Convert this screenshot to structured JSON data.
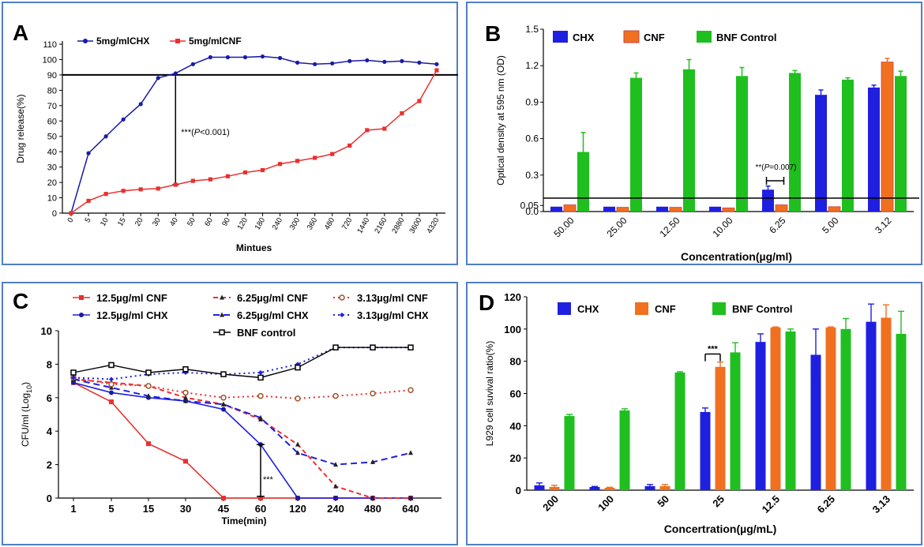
{
  "colors": {
    "frame": "#4f7fc4",
    "chx": "#1a1aa6",
    "cnf": "#e8312f",
    "cnf_bar": "#f07020",
    "bnf": "#1fbf1f",
    "black": "#000000",
    "chx_bar": "#1f1fe0"
  },
  "chart_data": [
    {
      "panel": "A",
      "type": "line",
      "title": "",
      "panel_label": "A",
      "xlabel": "Mintues",
      "ylabel": "Drug  release(%)",
      "ylim": [
        0,
        110
      ],
      "yticks": [
        "0",
        "10",
        "20",
        "30",
        "40",
        "50",
        "60",
        "70",
        "80",
        "90",
        "100",
        "110"
      ],
      "categories": [
        "0",
        "5",
        "10",
        "15",
        "20",
        "30",
        "40",
        "50",
        "60",
        "90",
        "120",
        "180",
        "240",
        "300",
        "360",
        "480",
        "720",
        "1440",
        "2160",
        "2880",
        "3600",
        "4320"
      ],
      "series": [
        {
          "name": "5mg/mlCHX",
          "values": [
            0,
            39,
            50,
            61,
            71,
            88,
            91,
            97,
            101.5,
            101.5,
            101.5,
            102,
            101,
            98,
            97,
            97.5,
            99,
            99.5,
            98.5,
            99,
            98,
            97
          ]
        },
        {
          "name": "5mg/mlCNF",
          "values": [
            0,
            8,
            12.5,
            14.5,
            15.5,
            16,
            18.5,
            21,
            22,
            24,
            26.5,
            28,
            32,
            34,
            36,
            38.5,
            44,
            54,
            55,
            65,
            73,
            93
          ]
        }
      ],
      "hline": 90,
      "annotation": "***(P<0.001)",
      "annotation_parts": [
        "***(",
        "P",
        "<0.001)"
      ]
    },
    {
      "panel": "B",
      "type": "bar",
      "panel_label": "B",
      "xlabel": "Concentration(µg/ml)",
      "ylabel": "Optical density at  595 nm (OD)",
      "ylim": [
        0,
        1.5
      ],
      "yticks": [
        "0.0",
        "0.05",
        "0.3",
        "0.6",
        "0.9",
        "1.2",
        "1.5"
      ],
      "categories": [
        "50.00",
        "25.00",
        "12.50",
        "10.00",
        "6.25",
        "5.00",
        "3.12"
      ],
      "series": [
        {
          "name": "CHX",
          "values": [
            0.04,
            0.04,
            0.04,
            0.04,
            0.18,
            0.96,
            1.02
          ],
          "errors": [
            0,
            0,
            0,
            0,
            0.03,
            0.04,
            0.02
          ]
        },
        {
          "name": "CNF",
          "values": [
            0.055,
            0.035,
            0.035,
            0.03,
            0.055,
            0.04,
            1.23
          ],
          "errors": [
            0,
            0,
            0,
            0,
            0,
            0,
            0.03
          ]
        },
        {
          "name": "BNF Control",
          "values": [
            0.49,
            1.1,
            1.17,
            1.115,
            1.14,
            1.085,
            1.115
          ],
          "errors": [
            0.16,
            0.04,
            0.08,
            0.07,
            0.02,
            0.015,
            0.04
          ]
        }
      ],
      "hline": 0.11,
      "annotation": "**(P=0.007)",
      "annotation_parts": [
        "**(",
        "P",
        "=0.007)"
      ]
    },
    {
      "panel": "C",
      "type": "line",
      "panel_label": "C",
      "xlabel": "Time(min)",
      "ylabel": "CFU/ml (Log",
      "ylabel_sub": "10",
      "ylabel_end": ")",
      "ylim": [
        0,
        10
      ],
      "yticks": [
        "0",
        "2",
        "4",
        "6",
        "8",
        "10"
      ],
      "categories": [
        "1",
        "5",
        "15",
        "30",
        "45",
        "60",
        "120",
        "240",
        "480",
        "640"
      ],
      "series": [
        {
          "name": "12.5µg/ml CNF",
          "values": [
            6.9,
            5.75,
            3.25,
            2.2,
            0,
            0,
            0,
            0,
            0,
            0
          ]
        },
        {
          "name": "12.5µg/ml CHX",
          "values": [
            6.9,
            6.3,
            6.0,
            5.8,
            5.3,
            3.2,
            0,
            0,
            0,
            0
          ]
        },
        {
          "name": "6.25µg/ml CNF",
          "values": [
            7.1,
            6.9,
            6.7,
            6.0,
            5.6,
            4.7,
            3.2,
            0.7,
            0,
            0
          ]
        },
        {
          "name": "6.25µg/ml CHX",
          "values": [
            7.1,
            6.6,
            6.1,
            5.8,
            5.6,
            4.8,
            2.7,
            2.0,
            2.15,
            2.7
          ]
        },
        {
          "name": "3.13µg/ml CNF",
          "values": [
            7.2,
            6.8,
            6.7,
            6.3,
            6.0,
            6.1,
            5.95,
            6.1,
            6.25,
            6.45
          ]
        },
        {
          "name": "3.13µg/ml CHX",
          "values": [
            7.2,
            7.1,
            7.4,
            7.5,
            7.4,
            7.5,
            8.0,
            9.0,
            9.0,
            9.0
          ]
        },
        {
          "name": "BNF control",
          "values": [
            7.5,
            7.95,
            7.5,
            7.7,
            7.4,
            7.2,
            7.8,
            9.0,
            9.0,
            9.0
          ]
        }
      ],
      "annotation": "***"
    },
    {
      "panel": "D",
      "type": "bar",
      "panel_label": "D",
      "xlabel": "Concertration(µg/mL)",
      "ylabel": "L929 cell suvival ratio(%)",
      "ylim": [
        0,
        120
      ],
      "yticks": [
        "0",
        "20",
        "40",
        "60",
        "80",
        "100",
        "120"
      ],
      "categories": [
        "200",
        "100",
        "50",
        "25",
        "12.5",
        "6.25",
        "3.13"
      ],
      "series": [
        {
          "name": "CHX",
          "values": [
            3,
            2,
            2.5,
            48.5,
            92,
            84,
            104.5
          ],
          "errors": [
            1.5,
            0.3,
            1,
            2.5,
            5,
            16,
            11
          ]
        },
        {
          "name": "CNF",
          "values": [
            2,
            1.5,
            2.5,
            76.5,
            101,
            101,
            107
          ],
          "errors": [
            1,
            0.3,
            1,
            3,
            0.3,
            0.3,
            8
          ]
        },
        {
          "name": "BNF Control",
          "values": [
            46,
            49.5,
            73,
            85.5,
            98.5,
            100,
            97
          ],
          "errors": [
            1,
            1,
            0.5,
            6,
            1.5,
            6.5,
            14
          ]
        }
      ],
      "annotation": "***"
    }
  ]
}
